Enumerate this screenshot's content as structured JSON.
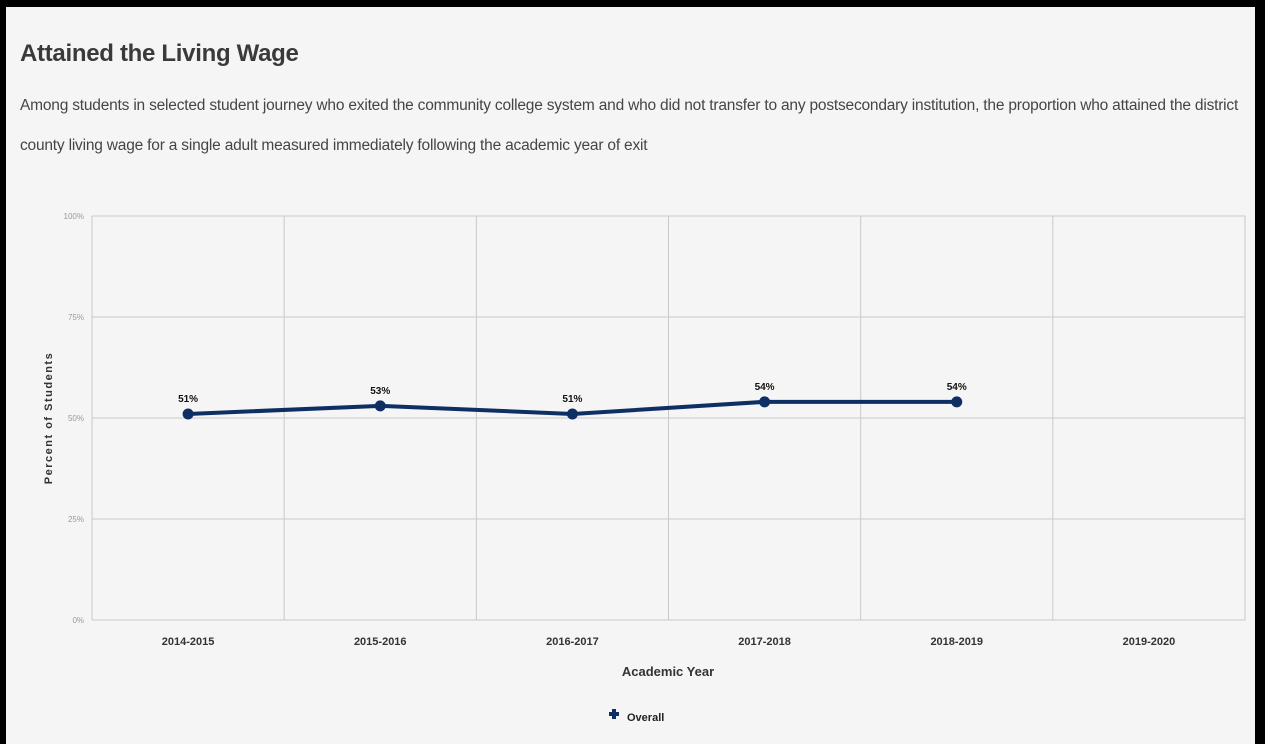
{
  "header": {
    "title": "Attained the Living Wage",
    "description": "Among students in selected student journey who exited the community college system and who did not transfer to any postsecondary institution, the proportion who attained the district county living wage for a single adult measured immediately following the academic year of exit"
  },
  "chart_data": {
    "type": "line",
    "categories": [
      "2014-2015",
      "2015-2016",
      "2016-2017",
      "2017-2018",
      "2018-2019",
      "2019-2020"
    ],
    "series": [
      {
        "name": "Overall",
        "values": [
          51,
          53,
          51,
          54,
          54,
          null
        ],
        "labels": [
          "51%",
          "53%",
          "51%",
          "54%",
          "54%",
          null
        ],
        "color": "#0d2f63"
      }
    ],
    "yticks": [
      "0%",
      "25%",
      "50%",
      "75%",
      "100%"
    ],
    "ylim": [
      0,
      100
    ],
    "xlabel": "Academic Year",
    "ylabel": "Percent of Students",
    "grid": true,
    "legend": "bottom-center"
  }
}
